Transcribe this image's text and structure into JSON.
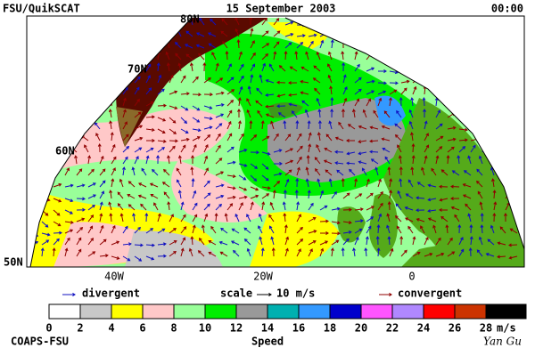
{
  "header": {
    "left": "FSU/QuikSCAT",
    "center": "15 September 2003",
    "right": "00:00"
  },
  "map": {
    "lat_labels": [
      "80N",
      "70N",
      "60N",
      "50N"
    ],
    "lon_labels": [
      "40W",
      "20W",
      "0"
    ]
  },
  "legend": {
    "divergent": "divergent",
    "scale_label": "scale",
    "scale_value": "10 m/s",
    "convergent": "convergent",
    "divergent_color": "#1010c0",
    "convergent_color": "#900000"
  },
  "colorbar": {
    "ticks": [
      "0",
      "2",
      "4",
      "6",
      "8",
      "10",
      "12",
      "14",
      "16",
      "18",
      "20",
      "22",
      "24",
      "26",
      "28"
    ],
    "unit": "m/s",
    "title": "Speed",
    "colors": [
      "#ffffff",
      "#c8c8c8",
      "#ffff00",
      "#ffc8c8",
      "#99ff99",
      "#00ee00",
      "#999999",
      "#00b0b0",
      "#3399ff",
      "#0000cc",
      "#ff55ff",
      "#b088ff",
      "#ff0000",
      "#cc3300",
      "#000000"
    ]
  },
  "footer": {
    "left": "COAPS-FSU",
    "right": "Yan Gu"
  }
}
